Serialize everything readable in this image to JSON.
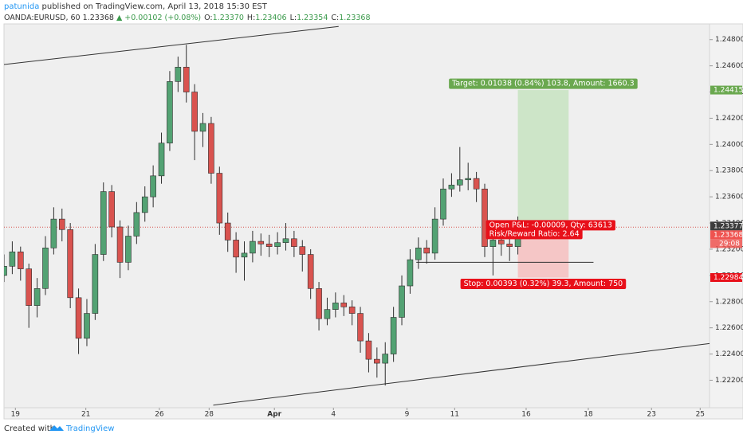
{
  "header": {
    "author": "patunida",
    "published": "published on TradingView.com, April 13, 2018 15:30 EST"
  },
  "chart_data": {
    "type": "candlestick",
    "symbol": "OANDA:EURUSD, 60",
    "last": "1.23368",
    "change": "▲ +0.00102 (+0.08%)",
    "quote": [
      {
        "label": "O:",
        "value": "1.23370"
      },
      {
        "label": "H:",
        "value": "1.23406"
      },
      {
        "label": "L:",
        "value": "1.23354"
      },
      {
        "label": "C:",
        "value": "1.23368"
      }
    ],
    "x": [
      0,
      8,
      16,
      24,
      32,
      40,
      48,
      56,
      64,
      72,
      80,
      88,
      96,
      104,
      112,
      120,
      128,
      136,
      144,
      152,
      160,
      168,
      176,
      184,
      192,
      200,
      208,
      216,
      224,
      232,
      240,
      248,
      256,
      264,
      272,
      280,
      288,
      296,
      304,
      312,
      320,
      328,
      336,
      344,
      352,
      360,
      368,
      376,
      384,
      392,
      400,
      408,
      416,
      424,
      432,
      440,
      448,
      456,
      464,
      472,
      480,
      488,
      496
    ],
    "open": [
      1.23,
      1.2307,
      1.2318,
      1.2305,
      1.2277,
      1.229,
      1.2321,
      1.2343,
      1.2335,
      1.2283,
      1.2252,
      1.2271,
      1.2316,
      1.2364,
      1.2337,
      1.231,
      1.233,
      1.2348,
      1.236,
      1.2376,
      1.2401,
      1.2448,
      1.2459,
      1.244,
      1.241,
      1.2416,
      1.2378,
      1.234,
      1.2327,
      1.2314,
      1.2317,
      1.2326,
      1.2324,
      1.2322,
      1.2325,
      1.2328,
      1.2322,
      1.2316,
      1.229,
      1.2267,
      1.2274,
      1.2279,
      1.2276,
      1.2271,
      1.225,
      1.2236,
      1.2233,
      1.224,
      1.2268,
      1.2292,
      1.2312,
      1.2321,
      1.2317,
      1.2343,
      1.2366,
      1.2369,
      1.2373,
      1.2374,
      1.2366,
      1.2322,
      1.2327,
      1.2324,
      1.2322
    ],
    "high": [
      1.2316,
      1.2326,
      1.2322,
      1.2309,
      1.2298,
      1.233,
      1.2352,
      1.2351,
      1.234,
      1.229,
      1.2282,
      1.2324,
      1.2371,
      1.2369,
      1.2342,
      1.2338,
      1.2356,
      1.2368,
      1.2384,
      1.2409,
      1.2456,
      1.2467,
      1.2476,
      1.2446,
      1.2424,
      1.2421,
      1.2383,
      1.2348,
      1.2333,
      1.2326,
      1.2334,
      1.2332,
      1.2331,
      1.2333,
      1.234,
      1.2334,
      1.2327,
      1.232,
      1.2295,
      1.2283,
      1.2287,
      1.2285,
      1.2281,
      1.2276,
      1.2256,
      1.2245,
      1.2249,
      1.2276,
      1.23,
      1.232,
      1.2329,
      1.2327,
      1.2352,
      1.2374,
      1.2378,
      1.2398,
      1.2386,
      1.2379,
      1.237,
      1.2336,
      1.2335,
      1.2333,
      1.2345
    ],
    "low": [
      1.2295,
      1.2301,
      1.2296,
      1.226,
      1.2268,
      1.2285,
      1.2316,
      1.2326,
      1.2275,
      1.224,
      1.2246,
      1.2266,
      1.2311,
      1.2329,
      1.2298,
      1.2304,
      1.2324,
      1.2341,
      1.2352,
      1.237,
      1.2395,
      1.244,
      1.2432,
      1.2388,
      1.2398,
      1.237,
      1.2331,
      1.2318,
      1.2302,
      1.2296,
      1.231,
      1.2315,
      1.2314,
      1.2316,
      1.2319,
      1.2314,
      1.2303,
      1.2282,
      1.2258,
      1.2262,
      1.2268,
      1.2269,
      1.2262,
      1.2241,
      1.2226,
      1.2222,
      1.2216,
      1.2234,
      1.2262,
      1.2286,
      1.2305,
      1.2309,
      1.2312,
      1.2338,
      1.236,
      1.2364,
      1.2365,
      1.2356,
      1.2314,
      1.23,
      1.2315,
      1.2311,
      1.2316
    ],
    "close": [
      1.2307,
      1.2318,
      1.2305,
      1.2277,
      1.229,
      1.2321,
      1.2343,
      1.2335,
      1.2283,
      1.2252,
      1.2271,
      1.2316,
      1.2364,
      1.2337,
      1.231,
      1.233,
      1.2348,
      1.236,
      1.2376,
      1.2401,
      1.2448,
      1.2459,
      1.244,
      1.241,
      1.2416,
      1.2378,
      1.234,
      1.2327,
      1.2314,
      1.2317,
      1.2326,
      1.2324,
      1.2322,
      1.2325,
      1.2328,
      1.2322,
      1.2316,
      1.229,
      1.2267,
      1.2274,
      1.2279,
      1.2276,
      1.2271,
      1.225,
      1.2236,
      1.2233,
      1.224,
      1.2268,
      1.2292,
      1.2312,
      1.2321,
      1.2317,
      1.2343,
      1.2366,
      1.2369,
      1.2373,
      1.2374,
      1.2366,
      1.2322,
      1.2327,
      1.2324,
      1.2322,
      1.23368
    ],
    "up_color": "#53a273",
    "down_color": "#d9534f",
    "wick_color": "#2e2e2e",
    "xlim": [
      0,
      681
    ],
    "xticks": [
      {
        "value": 11,
        "label": "19"
      },
      {
        "value": 79,
        "label": "21"
      },
      {
        "value": 150,
        "label": "26"
      },
      {
        "value": 198,
        "label": "28"
      },
      {
        "value": 261,
        "label": "Apr"
      },
      {
        "value": 318,
        "label": "4"
      },
      {
        "value": 389,
        "label": "9"
      },
      {
        "value": 435,
        "label": "11"
      },
      {
        "value": 504,
        "label": "16"
      },
      {
        "value": 564,
        "label": "18"
      },
      {
        "value": 625,
        "label": "23"
      },
      {
        "value": 672,
        "label": "25"
      }
    ],
    "ylim": [
      1.2199,
      1.2492
    ],
    "yticks": [
      {
        "value": 1.248,
        "label": "1.24800"
      },
      {
        "value": 1.246,
        "label": "1.24600"
      },
      {
        "value": 1.244,
        "label": "1.24400"
      },
      {
        "value": 1.242,
        "label": "1.24200"
      },
      {
        "value": 1.24,
        "label": "1.24000"
      },
      {
        "value": 1.238,
        "label": "1.23800"
      },
      {
        "value": 1.236,
        "label": "1.23600"
      },
      {
        "value": 1.234,
        "label": "1.23400"
      },
      {
        "value": 1.232,
        "label": "1.23200"
      },
      {
        "value": 1.23,
        "label": "1.23000"
      },
      {
        "value": 1.228,
        "label": "1.22800"
      },
      {
        "value": 1.226,
        "label": "1.22600"
      },
      {
        "value": 1.224,
        "label": "1.22400"
      },
      {
        "value": 1.222,
        "label": "1.22200"
      }
    ],
    "grid": false,
    "price_labels": [
      {
        "value": 1.24415,
        "label": "1.24415",
        "color": "#6aa84f"
      },
      {
        "value": 1.23377,
        "label": "1.23377",
        "color": "#3d3d3d"
      },
      {
        "value": 1.23368,
        "label": "1.23368",
        "color": "#ef5350"
      },
      {
        "value": 1.22984,
        "label": "1.22984",
        "color": "#e8101a"
      }
    ],
    "countdown": "29:08",
    "trendlines": [
      {
        "x": [
          0,
          323
        ],
        "y": [
          1.2461,
          1.249
        ]
      },
      {
        "x": [
          202,
          681
        ],
        "y": [
          1.2201,
          1.2248
        ]
      },
      {
        "x": [
          398,
          569
        ],
        "y": [
          1.231,
          1.231
        ]
      }
    ],
    "position": {
      "x": [
        496,
        545
      ],
      "entry": 1.23377,
      "target": 1.24415,
      "stop": 1.22984,
      "profit_color": "#cde5c8",
      "loss_color": "#f5c6c6",
      "target_color": "#6aa84f",
      "stop_color": "#e8101a",
      "target_label": "Target: 0.01038 (0.84%) 103.8, Amount: 1660.3",
      "pnl_label": "Open P&L: -0.00009, Qty: 63613",
      "ratio_label": "Risk/Reward Ratio: 2.64",
      "stop_label": "Stop: 0.00393 (0.32%) 39.3, Amount: 750"
    }
  },
  "footer": {
    "created": "Created with",
    "brand": "TradingView"
  }
}
